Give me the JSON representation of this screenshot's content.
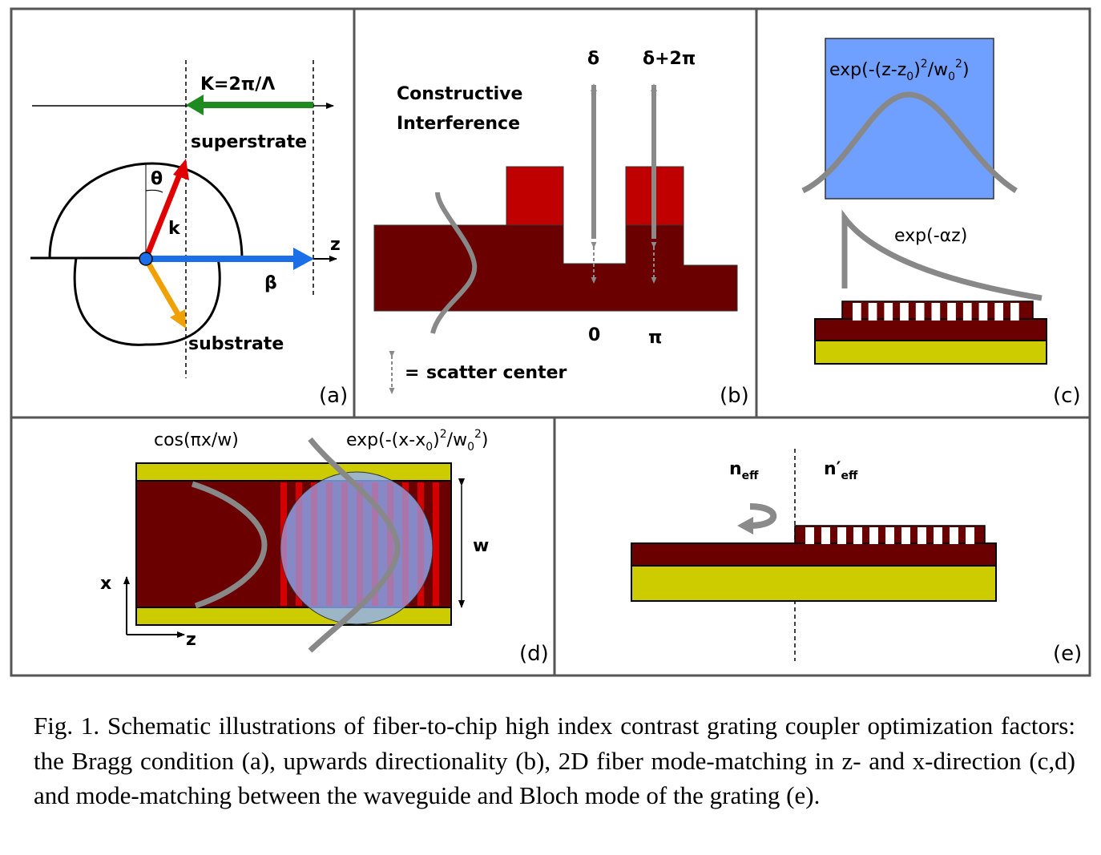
{
  "colors": {
    "waveguide": "#6b0000",
    "grating_tooth": "#c00000",
    "substrate": "#cccc00",
    "mode_box": "#6fa0ff",
    "fiber_mode": "#888888",
    "k_vector": "#e00000",
    "beta_vector": "#1a6fe8",
    "K_vector": "#1f8a1f",
    "reflected_vector": "#f0a000",
    "frame": "#555555"
  },
  "panel_a": {
    "tag": "(a)",
    "K_label": "K=2π/Λ",
    "superstrate": "superstrate",
    "substrate": "substrate",
    "theta": "θ",
    "k": "k",
    "beta": "β",
    "z": "z"
  },
  "panel_b": {
    "tag": "(b)",
    "constructive_line1": "Constructive",
    "constructive_line2": "Interference",
    "delta": "δ",
    "delta_2pi": "δ+2π",
    "zero": "0",
    "pi": "π",
    "legend_eq": "=",
    "legend_text": "scatter center"
  },
  "panel_c": {
    "tag": "(c)",
    "gauss_base": "exp(-(z-z",
    "gauss_sub0": "0",
    "gauss_mid": ")",
    "gauss_sup2": "2",
    "gauss_div": "/w",
    "gauss_sub1": "0",
    "gauss_sup3": "2",
    "gauss_end": ")",
    "decay": "exp(-αz)"
  },
  "panel_d": {
    "tag": "(d)",
    "cos_label": "cos(πx/w)",
    "gauss_base": "exp(-(x-x",
    "gauss_sub0": "0",
    "gauss_mid": ")",
    "gauss_sup2": "2",
    "gauss_div": "/w",
    "gauss_sub1": "0",
    "gauss_sup3": "2",
    "gauss_end": ")",
    "w": "w",
    "x": "x",
    "z": "z"
  },
  "panel_e": {
    "tag": "(e)",
    "n": "n",
    "n_sub": "eff",
    "n_prime": "n′",
    "n_prime_sub": "eff"
  },
  "caption": "Fig. 1. Schematic illustrations of fiber-to-chip high index contrast grating coupler optimization factors: the Bragg condition (a), upwards directionality (b), 2D fiber mode-matching in z- and x-direction (c,d) and mode-matching between the waveguide and Bloch mode of the grating (e)."
}
